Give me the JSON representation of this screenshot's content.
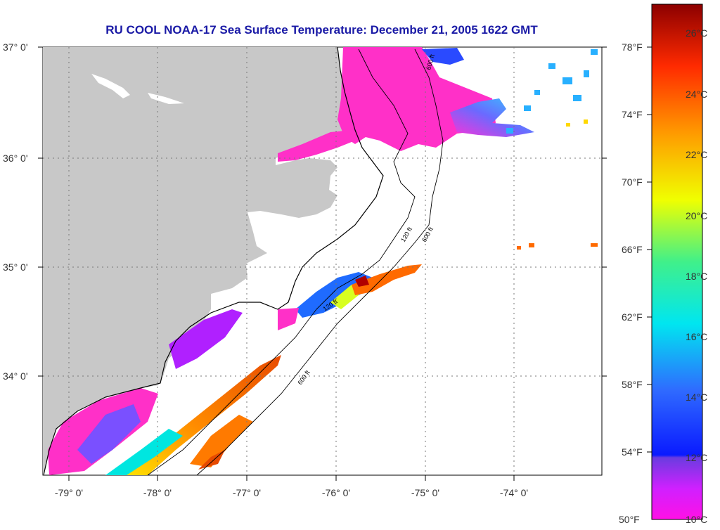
{
  "title": "RU COOL  NOAA-17  Sea Surface Temperature:  December 21, 2005 1622 GMT",
  "map": {
    "lat_labels": [
      "37° 0'",
      "36° 0'",
      "35° 0'",
      "34° 0'"
    ],
    "lon_labels": [
      "-79° 0'",
      "-78° 0'",
      "-77° 0'",
      "-76° 0'",
      "-75° 0'",
      "-74° 0'"
    ],
    "contour_labels": [
      "600 ft",
      "120 ft",
      "600 ft",
      "120 ft",
      "600 ft"
    ]
  },
  "colorbar": {
    "fahrenheit": [
      "78°F",
      "74°F",
      "70°F",
      "66°F",
      "62°F",
      "58°F",
      "54°F",
      "50°F"
    ],
    "celsius": [
      "26°C",
      "24°C",
      "22°C",
      "20°C",
      "18°C",
      "16°C",
      "14°C",
      "12°C",
      "10°C"
    ]
  },
  "colors": {
    "title": "#1a1aa6",
    "land": "#c8c8c8",
    "cold": "#ff33cc",
    "warm": "#ff6a00"
  }
}
